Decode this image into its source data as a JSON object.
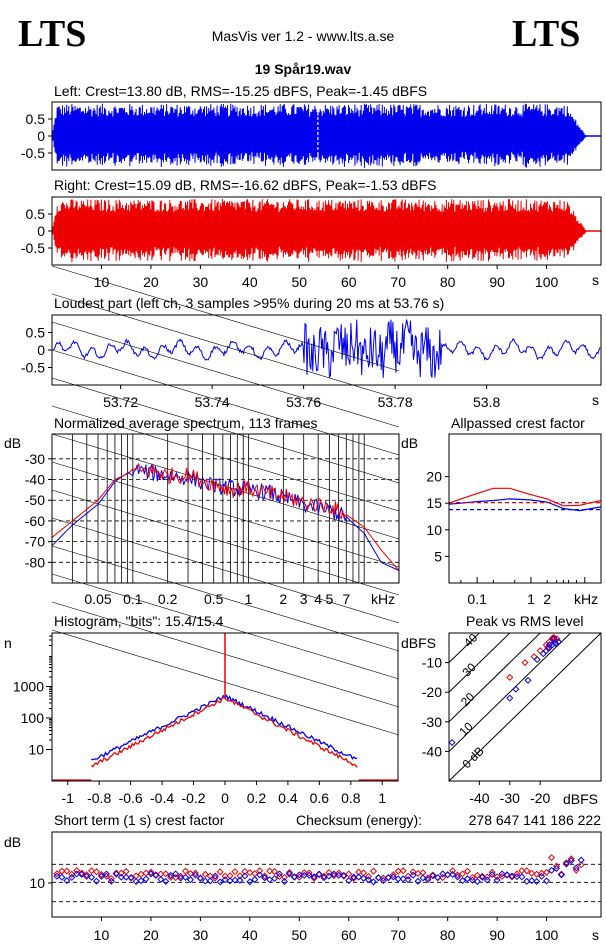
{
  "header": {
    "logo_left": "LTS",
    "logo_right": "LTS",
    "app_title": "MasVis ver 1.2 - www.lts.a.se",
    "file_title": "19 Spår19.wav"
  },
  "colors": {
    "left": "#0000ee",
    "right": "#ee0000",
    "axes": "#000000"
  },
  "chart_data": [
    {
      "type": "line",
      "id": "left-waveform",
      "title": "Left: Crest=13.80 dB, RMS=-15.25 dBFS, Peak=-1.45 dBFS",
      "yticks": [
        "0.5",
        "0",
        "-0.5"
      ],
      "ylim": [
        -1,
        1
      ],
      "xlim": [
        0,
        111
      ],
      "envelope": {
        "amplitude": 0.95,
        "end_s": 107
      },
      "marker_s": 53.76
    },
    {
      "type": "line",
      "id": "right-waveform",
      "title": "Right: Crest=15.09 dB, RMS=-16.62 dBFS, Peak=-1.53 dBFS",
      "yticks": [
        "0.5",
        "0",
        "-0.5"
      ],
      "ylim": [
        -1,
        1
      ],
      "xlim": [
        0,
        111
      ],
      "xticks": [
        "10",
        "20",
        "30",
        "40",
        "50",
        "60",
        "70",
        "80",
        "90",
        "100"
      ],
      "xunit": "s",
      "envelope": {
        "amplitude": 0.94,
        "end_s": 107
      }
    },
    {
      "type": "line",
      "id": "loudest-part",
      "title": "Loudest part (left  ch, 3 samples >95% during 20 ms at 53.76 s)",
      "yticks": [
        "0.5",
        "0",
        "-0.5"
      ],
      "ylim": [
        -1,
        1
      ],
      "xlim": [
        53.705,
        53.825
      ],
      "xticks": [
        "53.72",
        "53.74",
        "53.76",
        "53.78",
        "53.8"
      ],
      "xunit": "s"
    },
    {
      "type": "line",
      "id": "average-spectrum",
      "title": "Normalized average spectrum, 113 frames",
      "yunit": "dB",
      "yticks": [
        "-30",
        "-40",
        "-50",
        "-60",
        "-70",
        "-80"
      ],
      "ylim": [
        -90,
        -18
      ],
      "xscale": "log",
      "xlim": [
        0.02,
        20
      ],
      "xticks": [
        "0.05",
        "0.1",
        "0.2",
        "0.5",
        "1",
        "2",
        "3",
        "4",
        "5",
        "7"
      ],
      "xunit": "kHz",
      "series": [
        {
          "name": "",
          "color": "#0000ee",
          "x": [
            0.02,
            0.03,
            0.05,
            0.07,
            0.1,
            0.15,
            0.2,
            0.3,
            0.5,
            0.7,
            1,
            1.5,
            2,
            3,
            5,
            7,
            10,
            14,
            20
          ],
          "y": [
            -72,
            -62,
            -52,
            -41,
            -35,
            -37,
            -38,
            -39,
            -43,
            -44,
            -45,
            -46,
            -49,
            -52,
            -55,
            -58,
            -66,
            -80,
            -84
          ]
        },
        {
          "name": "",
          "color": "#ee0000",
          "x": [
            0.02,
            0.03,
            0.05,
            0.07,
            0.1,
            0.15,
            0.2,
            0.3,
            0.5,
            0.7,
            1,
            1.5,
            2,
            3,
            5,
            7,
            10,
            14,
            20
          ],
          "y": [
            -68,
            -60,
            -50,
            -40,
            -36,
            -36,
            -38,
            -38,
            -42,
            -45,
            -44,
            -47,
            -48,
            -51,
            -53,
            -57,
            -63,
            -74,
            -84
          ]
        }
      ]
    },
    {
      "type": "line",
      "id": "allpassed-crest",
      "title": "Allpassed crest factor",
      "yunit": "dB",
      "yticks": [
        "20",
        "15",
        "10",
        "5"
      ],
      "ylim": [
        0,
        28
      ],
      "xscale": "log",
      "xlim": [
        0.03,
        20
      ],
      "xticks": [
        "0.1",
        "1",
        "2"
      ],
      "xunit": "kHz",
      "series": [
        {
          "name": "",
          "color": "#ee0000",
          "style": "solid",
          "x": [
            0.03,
            0.05,
            0.1,
            0.2,
            0.4,
            1,
            2,
            4,
            8,
            20
          ],
          "y": [
            15,
            15.8,
            16.8,
            17.8,
            17.8,
            16.6,
            15.8,
            14.5,
            14.6,
            15.5
          ]
        },
        {
          "name": "",
          "color": "#0000ee",
          "style": "solid",
          "x": [
            0.03,
            0.05,
            0.1,
            0.2,
            0.4,
            1,
            2,
            4,
            8,
            20
          ],
          "y": [
            14.8,
            15,
            15.3,
            15.5,
            15.8,
            15.6,
            15.2,
            14,
            13.6,
            14.3
          ]
        },
        {
          "name": "",
          "color": "#ee0000",
          "style": "dashed",
          "x": [
            0.03,
            20
          ],
          "y": [
            15.1,
            15.1
          ]
        },
        {
          "name": "",
          "color": "#0000ee",
          "style": "dashed",
          "x": [
            0.03,
            20
          ],
          "y": [
            13.8,
            13.8
          ]
        }
      ]
    },
    {
      "type": "line",
      "id": "histogram",
      "title": "Histogram, \"bits\": 15.4/15.4",
      "yunit": "n",
      "yscale": "log",
      "yticks": [
        "1000",
        "100",
        "10"
      ],
      "ylim": [
        1,
        50000
      ],
      "xlim": [
        -1.1,
        1.1
      ],
      "xticks": [
        "-1",
        "-0.8",
        "-0.6",
        "-0.4",
        "-0.2",
        "0",
        "0.2",
        "0.4",
        "0.6",
        "0.8",
        "1"
      ]
    },
    {
      "type": "scatter",
      "id": "peak-vs-rms",
      "title": "Peak vs RMS level",
      "yunit": "dBFS",
      "xunit": "dBFS",
      "yticks": [
        "-10",
        "-20",
        "-30",
        "-40"
      ],
      "xticks": [
        "-40",
        "-30",
        "-20"
      ],
      "xlim": [
        -50,
        0
      ],
      "ylim": [
        -50,
        0
      ],
      "crest_lines": [
        "0 dB",
        "10",
        "20",
        "30",
        "40"
      ],
      "series": [
        {
          "name": "",
          "color": "#ee0000",
          "x": [
            -30,
            -25,
            -22,
            -20,
            -18,
            -17,
            -16,
            -15,
            -15.5,
            -14.5,
            -14,
            -16,
            -17.5
          ],
          "y": [
            -15,
            -10,
            -8,
            -6,
            -4,
            -3,
            -2,
            -2.5,
            -1.5,
            -2,
            -3,
            -1.8,
            -5
          ]
        },
        {
          "name": "",
          "color": "#0000ee",
          "x": [
            -49,
            -30,
            -28,
            -24,
            -21,
            -19,
            -17,
            -16,
            -15,
            -14,
            -15.5,
            -17,
            -18
          ],
          "y": [
            -37,
            -22,
            -19,
            -16,
            -9,
            -7,
            -5,
            -4,
            -3.5,
            -3,
            -2,
            -4,
            -6
          ]
        }
      ]
    },
    {
      "type": "scatter",
      "id": "short-term-crest",
      "title": "Short term (1 s) crest factor",
      "yunit": "dB",
      "yticks": [
        "10"
      ],
      "ylim": [
        0,
        25
      ],
      "xlim": [
        0,
        111
      ],
      "xticks": [
        "10",
        "20",
        "30",
        "40",
        "50",
        "60",
        "70",
        "80",
        "90",
        "100"
      ],
      "xunit": "s",
      "dashed_lines": [
        4.5,
        10.2,
        15.5
      ],
      "series": [
        {
          "name": "",
          "color": "#ee0000",
          "baseline": 12.5
        },
        {
          "name": "",
          "color": "#0000ee",
          "baseline": 11.5
        }
      ]
    }
  ],
  "checksum": {
    "label": "Checksum (energy):",
    "value": "278 647 141 186 222"
  }
}
